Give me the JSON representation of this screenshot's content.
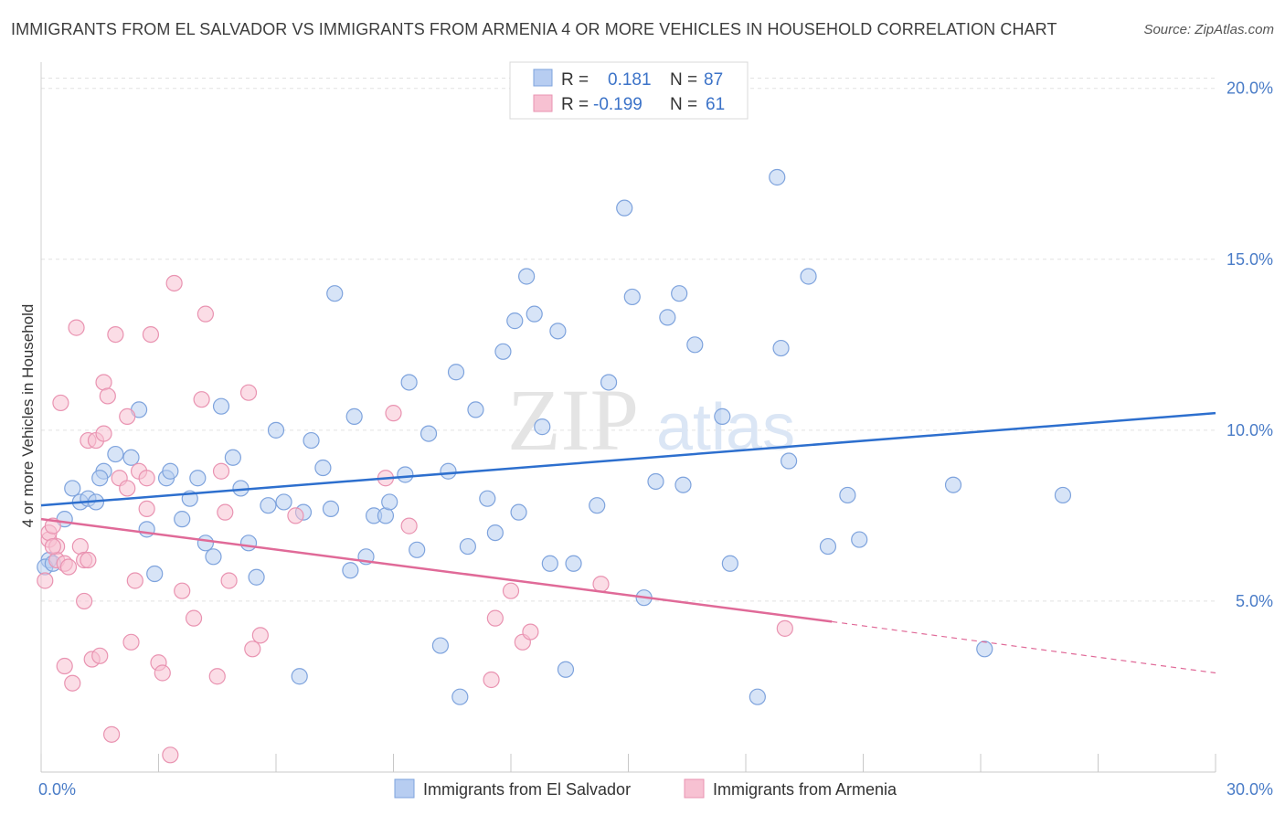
{
  "title": "IMMIGRANTS FROM EL SALVADOR VS IMMIGRANTS FROM ARMENIA 4 OR MORE VEHICLES IN HOUSEHOLD CORRELATION CHART",
  "source": "Source: ZipAtlas.com",
  "watermark": {
    "zip": "ZIP",
    "atlas": "atlas"
  },
  "colors": {
    "blue_fill": "#b7cdf1",
    "blue_stroke": "#7ea3dd",
    "blue_line": "#2d6fce",
    "pink_fill": "#f7c1d2",
    "pink_stroke": "#e993b1",
    "pink_line": "#e06a98",
    "tick_color": "#4a7cc7"
  },
  "legend": {
    "rows": [
      {
        "r_label": "R =",
        "r_value": "0.181",
        "n_label": "N =",
        "n_value": "87"
      },
      {
        "r_label": "R =",
        "r_value": "-0.199",
        "n_label": "N =",
        "n_value": "61"
      }
    ]
  },
  "chart_data": {
    "type": "scatter",
    "title": "IMMIGRANTS FROM EL SALVADOR VS IMMIGRANTS FROM ARMENIA 4 OR MORE VEHICLES IN HOUSEHOLD CORRELATION CHART",
    "ylabel": "4 or more Vehicles in Household",
    "xlabel": "",
    "xlim": [
      0,
      30
    ],
    "ylim": [
      0,
      20.5
    ],
    "y_ticks": [
      {
        "value": 5,
        "label": "5.0%"
      },
      {
        "value": 10,
        "label": "10.0%"
      },
      {
        "value": 15,
        "label": "15.0%"
      },
      {
        "value": 20,
        "label": "20.0%"
      }
    ],
    "x_tick_labels": [
      {
        "value": 0,
        "label": "0.0%"
      },
      {
        "value": 30,
        "label": "30.0%"
      }
    ],
    "x_minor_ticks": [
      0,
      3,
      6,
      9,
      12,
      15,
      18,
      21,
      24,
      27,
      30
    ],
    "grid": "horizontal-dashed",
    "legend_position": "top-center",
    "series": [
      {
        "name": "Immigrants from El Salvador",
        "color": "#b7cdf1",
        "trend": {
          "x": [
            0,
            30
          ],
          "y": [
            7.8,
            10.5
          ]
        },
        "points": [
          [
            0.2,
            6.2
          ],
          [
            0.6,
            7.4
          ],
          [
            0.8,
            8.3
          ],
          [
            1.0,
            7.9
          ],
          [
            1.2,
            8.0
          ],
          [
            1.4,
            7.9
          ],
          [
            1.6,
            8.8
          ],
          [
            1.9,
            9.3
          ],
          [
            2.3,
            9.2
          ],
          [
            2.5,
            10.6
          ],
          [
            2.7,
            7.1
          ],
          [
            2.9,
            5.8
          ],
          [
            3.2,
            8.6
          ],
          [
            3.3,
            8.8
          ],
          [
            3.6,
            7.4
          ],
          [
            3.8,
            8.0
          ],
          [
            4.0,
            8.6
          ],
          [
            4.2,
            6.7
          ],
          [
            4.4,
            6.3
          ],
          [
            4.6,
            10.7
          ],
          [
            4.9,
            9.2
          ],
          [
            5.1,
            8.3
          ],
          [
            5.3,
            6.7
          ],
          [
            5.5,
            5.7
          ],
          [
            5.8,
            7.8
          ],
          [
            6.0,
            10.0
          ],
          [
            6.2,
            7.9
          ],
          [
            6.6,
            2.8
          ],
          [
            6.7,
            7.6
          ],
          [
            6.9,
            9.7
          ],
          [
            7.2,
            8.9
          ],
          [
            7.4,
            7.7
          ],
          [
            7.5,
            14.0
          ],
          [
            7.9,
            5.9
          ],
          [
            8.0,
            10.4
          ],
          [
            8.3,
            6.3
          ],
          [
            8.5,
            7.5
          ],
          [
            8.8,
            7.5
          ],
          [
            8.9,
            7.9
          ],
          [
            9.3,
            8.7
          ],
          [
            9.4,
            11.4
          ],
          [
            9.6,
            6.5
          ],
          [
            9.9,
            9.9
          ],
          [
            10.2,
            3.7
          ],
          [
            10.4,
            8.8
          ],
          [
            10.6,
            11.7
          ],
          [
            10.7,
            2.2
          ],
          [
            10.9,
            6.6
          ],
          [
            11.1,
            10.6
          ],
          [
            11.4,
            8.0
          ],
          [
            11.6,
            7.0
          ],
          [
            11.8,
            12.3
          ],
          [
            12.1,
            13.2
          ],
          [
            12.2,
            7.6
          ],
          [
            12.4,
            14.5
          ],
          [
            12.6,
            13.4
          ],
          [
            12.8,
            10.1
          ],
          [
            13.0,
            6.1
          ],
          [
            13.2,
            12.9
          ],
          [
            13.4,
            3.0
          ],
          [
            13.6,
            6.1
          ],
          [
            14.2,
            7.8
          ],
          [
            14.5,
            11.4
          ],
          [
            14.9,
            16.5
          ],
          [
            15.1,
            13.9
          ],
          [
            15.4,
            5.1
          ],
          [
            15.7,
            8.5
          ],
          [
            16.0,
            13.3
          ],
          [
            16.3,
            14.0
          ],
          [
            16.4,
            8.4
          ],
          [
            16.7,
            12.5
          ],
          [
            17.4,
            10.4
          ],
          [
            17.6,
            6.1
          ],
          [
            18.3,
            2.2
          ],
          [
            18.8,
            17.4
          ],
          [
            18.9,
            12.4
          ],
          [
            19.1,
            9.1
          ],
          [
            19.6,
            14.5
          ],
          [
            20.1,
            6.6
          ],
          [
            20.6,
            8.1
          ],
          [
            20.9,
            6.8
          ],
          [
            23.3,
            8.4
          ],
          [
            24.1,
            3.6
          ],
          [
            26.1,
            8.1
          ],
          [
            0.1,
            6.0
          ],
          [
            0.3,
            6.1
          ],
          [
            1.5,
            8.6
          ]
        ]
      },
      {
        "name": "Immigrants from Armenia",
        "color": "#f7c1d2",
        "trend": {
          "x": [
            0,
            20.2
          ],
          "y": [
            7.4,
            4.4
          ],
          "dashed_to": {
            "x": 30,
            "y": 2.9
          }
        },
        "points": [
          [
            0.1,
            5.6
          ],
          [
            0.2,
            6.8
          ],
          [
            0.2,
            7.0
          ],
          [
            0.3,
            7.2
          ],
          [
            0.4,
            6.6
          ],
          [
            0.4,
            6.2
          ],
          [
            0.5,
            10.8
          ],
          [
            0.6,
            6.1
          ],
          [
            0.6,
            3.1
          ],
          [
            0.7,
            6.0
          ],
          [
            0.8,
            2.6
          ],
          [
            0.9,
            13.0
          ],
          [
            1.0,
            6.6
          ],
          [
            1.1,
            5.0
          ],
          [
            1.1,
            6.2
          ],
          [
            1.2,
            6.2
          ],
          [
            1.2,
            9.7
          ],
          [
            1.3,
            3.3
          ],
          [
            1.4,
            9.7
          ],
          [
            1.5,
            3.4
          ],
          [
            1.6,
            9.9
          ],
          [
            1.6,
            11.4
          ],
          [
            1.7,
            11.0
          ],
          [
            1.8,
            1.1
          ],
          [
            1.9,
            12.8
          ],
          [
            2.0,
            8.6
          ],
          [
            2.2,
            10.4
          ],
          [
            2.2,
            8.3
          ],
          [
            2.3,
            3.8
          ],
          [
            2.4,
            5.6
          ],
          [
            2.5,
            8.8
          ],
          [
            2.7,
            7.7
          ],
          [
            2.7,
            8.6
          ],
          [
            2.8,
            12.8
          ],
          [
            3.0,
            3.2
          ],
          [
            3.1,
            2.9
          ],
          [
            3.3,
            0.5
          ],
          [
            3.4,
            14.3
          ],
          [
            3.6,
            5.3
          ],
          [
            3.9,
            4.5
          ],
          [
            4.1,
            10.9
          ],
          [
            4.2,
            13.4
          ],
          [
            4.5,
            2.8
          ],
          [
            4.6,
            8.8
          ],
          [
            4.7,
            7.6
          ],
          [
            4.8,
            5.6
          ],
          [
            5.3,
            11.1
          ],
          [
            5.4,
            3.6
          ],
          [
            5.6,
            4.0
          ],
          [
            6.5,
            7.5
          ],
          [
            8.8,
            8.6
          ],
          [
            9.0,
            10.5
          ],
          [
            9.4,
            7.2
          ],
          [
            11.5,
            2.7
          ],
          [
            11.6,
            4.5
          ],
          [
            12.0,
            5.3
          ],
          [
            12.3,
            3.8
          ],
          [
            12.5,
            4.1
          ],
          [
            14.3,
            5.5
          ],
          [
            19.0,
            4.2
          ],
          [
            0.3,
            6.6
          ]
        ]
      }
    ]
  },
  "bottom_legend": [
    {
      "label": "Immigrants from El Salvador"
    },
    {
      "label": "Immigrants from Armenia"
    }
  ]
}
